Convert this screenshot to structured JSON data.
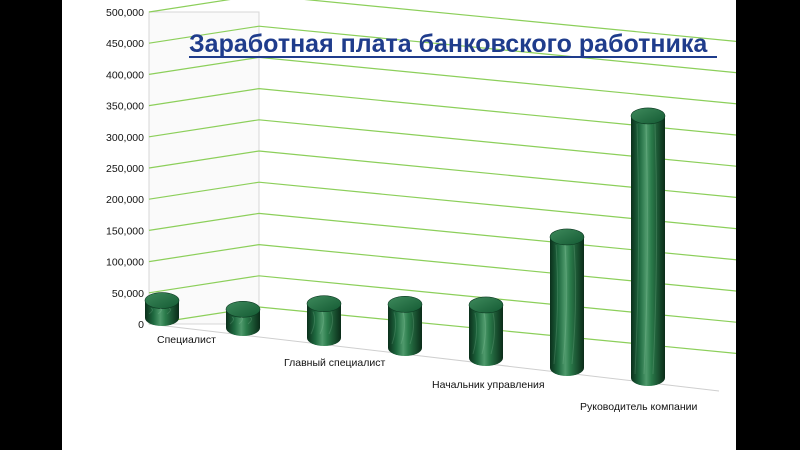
{
  "chart_data": {
    "type": "bar",
    "title": "Заработная плата банковского работника",
    "categories": [
      "Специалист",
      "",
      "Главный специалист",
      "",
      "Начальник управления",
      "",
      "Руководитель компании"
    ],
    "category_labels_shown": [
      "Специалист",
      "Главный специалист",
      "Начальник управления",
      "Руководитель компании"
    ],
    "values": [
      28000,
      30000,
      55000,
      70000,
      85000,
      210000,
      420000
    ],
    "ylim": [
      0,
      500000
    ],
    "y_ticks": [
      "0",
      "50,000",
      "100,000",
      "150,000",
      "200,000",
      "250,000",
      "300,000",
      "350,000",
      "400,000",
      "450,000",
      "500,000"
    ],
    "grid": true,
    "bar_style": "3d-cylinder",
    "colors": {
      "bar_dark": "#0e3f24",
      "bar_mid": "#2f7a4f",
      "bar_light": "#7fc29a",
      "gridline": "#8ccf5a",
      "title": "#1f3c8c"
    }
  }
}
